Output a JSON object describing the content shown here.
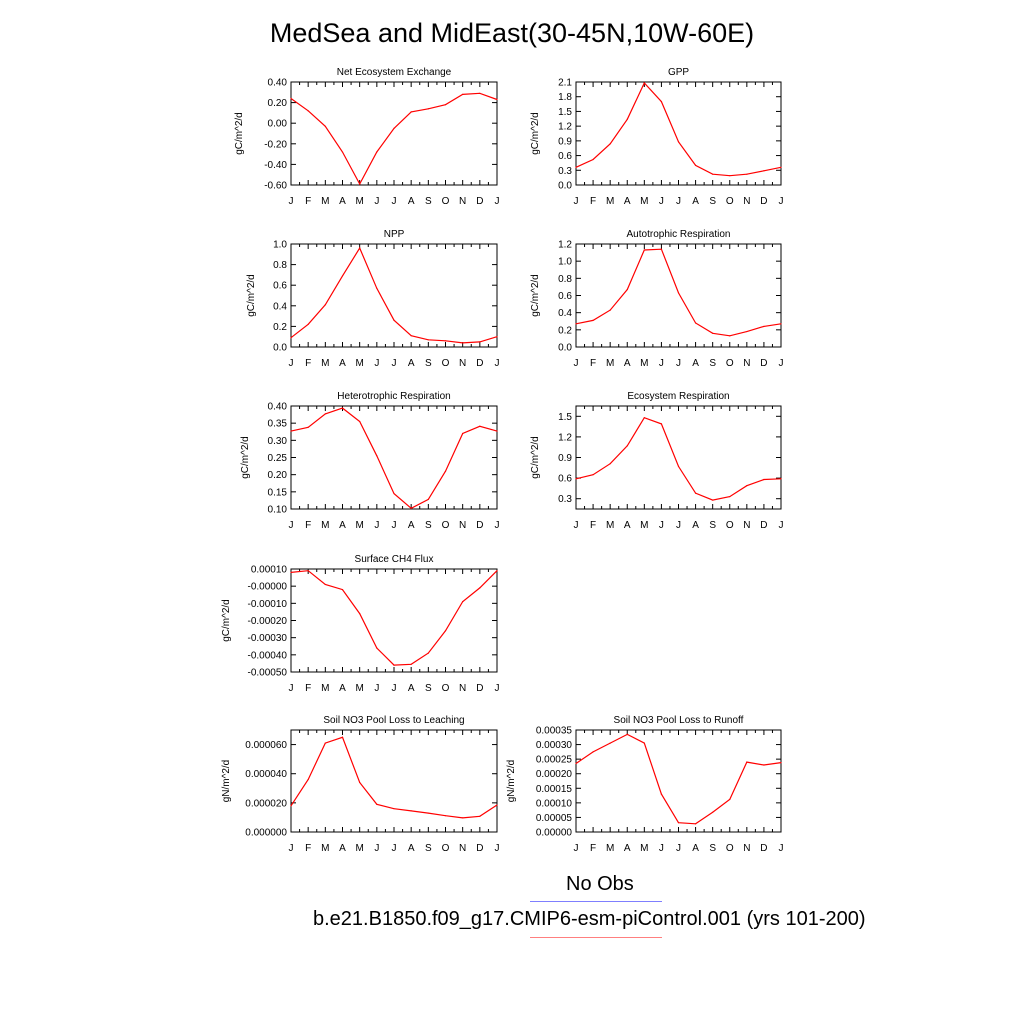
{
  "figure": {
    "title": "MedSea and MidEast(30-45N,10W-60E)",
    "legend": [
      {
        "label": "No Obs",
        "color": "#7f7fff"
      },
      {
        "label": "b.e21.B1850.f09_g17.CMIP6-esm-piControl.001 (yrs 101-200)",
        "color": "#ff7f7f"
      }
    ],
    "line_color": "#ff0000"
  },
  "chart_data": [
    {
      "type": "line",
      "title": "Net Ecosystem Exchange",
      "ylabel": "gC/m^2/d",
      "categories": [
        "J",
        "F",
        "M",
        "A",
        "M",
        "J",
        "J",
        "A",
        "S",
        "O",
        "N",
        "D",
        "J"
      ],
      "ylim": [
        -0.6,
        0.4
      ],
      "yticks": [
        -0.6,
        -0.4,
        -0.2,
        0.0,
        0.2,
        0.4
      ],
      "yticklabels": [
        "-0.60",
        "-0.40",
        "-0.20",
        "0.00",
        "0.20",
        "0.40"
      ],
      "series": [
        {
          "values": [
            0.24,
            0.12,
            -0.03,
            -0.28,
            -0.59,
            -0.28,
            -0.05,
            0.11,
            0.14,
            0.18,
            0.28,
            0.29,
            0.23
          ]
        }
      ]
    },
    {
      "type": "line",
      "title": "GPP",
      "ylabel": "gC/m^2/d",
      "categories": [
        "J",
        "F",
        "M",
        "A",
        "M",
        "J",
        "J",
        "A",
        "S",
        "O",
        "N",
        "D",
        "J"
      ],
      "ylim": [
        0,
        2.1
      ],
      "yticks": [
        0,
        0.3,
        0.6,
        0.9,
        1.2,
        1.5,
        1.8,
        2.1
      ],
      "yticklabels": [
        "0.0",
        "0.3",
        "0.6",
        "0.9",
        "1.2",
        "1.5",
        "1.8",
        "2.1"
      ],
      "series": [
        {
          "values": [
            0.36,
            0.52,
            0.84,
            1.34,
            2.08,
            1.7,
            0.88,
            0.4,
            0.22,
            0.19,
            0.22,
            0.29,
            0.36
          ]
        }
      ]
    },
    {
      "type": "line",
      "title": "NPP",
      "ylabel": "gC/m^2/d",
      "categories": [
        "J",
        "F",
        "M",
        "A",
        "M",
        "J",
        "J",
        "A",
        "S",
        "O",
        "N",
        "D",
        "J"
      ],
      "ylim": [
        0,
        1.0
      ],
      "yticks": [
        0,
        0.2,
        0.4,
        0.6,
        0.8,
        1.0
      ],
      "yticklabels": [
        "0.0",
        "0.2",
        "0.4",
        "0.6",
        "0.8",
        "1.0"
      ],
      "series": [
        {
          "values": [
            0.09,
            0.22,
            0.41,
            0.69,
            0.96,
            0.57,
            0.26,
            0.11,
            0.07,
            0.06,
            0.04,
            0.05,
            0.1
          ]
        }
      ]
    },
    {
      "type": "line",
      "title": "Autotrophic Respiration",
      "ylabel": "gC/m^2/d",
      "categories": [
        "J",
        "F",
        "M",
        "A",
        "M",
        "J",
        "J",
        "A",
        "S",
        "O",
        "N",
        "D",
        "J"
      ],
      "ylim": [
        0,
        1.2
      ],
      "yticks": [
        0,
        0.2,
        0.4,
        0.6,
        0.8,
        1.0,
        1.2
      ],
      "yticklabels": [
        "0.0",
        "0.2",
        "0.4",
        "0.6",
        "0.8",
        "1.0",
        "1.2"
      ],
      "series": [
        {
          "values": [
            0.27,
            0.31,
            0.43,
            0.67,
            1.13,
            1.14,
            0.63,
            0.28,
            0.16,
            0.13,
            0.18,
            0.24,
            0.27
          ]
        }
      ]
    },
    {
      "type": "line",
      "title": "Heterotrophic Respiration",
      "ylabel": "gC/m^2/d",
      "categories": [
        "J",
        "F",
        "M",
        "A",
        "M",
        "J",
        "J",
        "A",
        "S",
        "O",
        "N",
        "D",
        "J"
      ],
      "ylim": [
        0.1,
        0.4
      ],
      "yticks": [
        0.1,
        0.15,
        0.2,
        0.25,
        0.3,
        0.35,
        0.4
      ],
      "yticklabels": [
        "0.10",
        "0.15",
        "0.20",
        "0.25",
        "0.30",
        "0.35",
        "0.40"
      ],
      "series": [
        {
          "values": [
            0.327,
            0.338,
            0.377,
            0.394,
            0.355,
            0.255,
            0.145,
            0.102,
            0.128,
            0.21,
            0.32,
            0.341,
            0.327
          ]
        }
      ]
    },
    {
      "type": "line",
      "title": "Ecosystem Respiration",
      "ylabel": "gC/m^2/d",
      "categories": [
        "J",
        "F",
        "M",
        "A",
        "M",
        "J",
        "J",
        "A",
        "S",
        "O",
        "N",
        "D",
        "J"
      ],
      "ylim": [
        0.15,
        1.65
      ],
      "yticks": [
        0.3,
        0.6,
        0.9,
        1.2,
        1.5
      ],
      "yticklabels": [
        "0.3",
        "0.6",
        "0.9",
        "1.2",
        "1.5"
      ],
      "series": [
        {
          "values": [
            0.59,
            0.65,
            0.81,
            1.07,
            1.48,
            1.39,
            0.77,
            0.38,
            0.28,
            0.33,
            0.49,
            0.58,
            0.59
          ]
        }
      ]
    },
    {
      "type": "line",
      "title": "Surface CH4 Flux",
      "ylabel": "gC/m^2/d",
      "categories": [
        "J",
        "F",
        "M",
        "A",
        "M",
        "J",
        "J",
        "A",
        "S",
        "O",
        "N",
        "D",
        "J"
      ],
      "ylim": [
        -0.0005,
        0.0001
      ],
      "yticks": [
        0.0001,
        0.0,
        -0.0001,
        -0.0002,
        -0.0003,
        -0.0004,
        -0.0005
      ],
      "yticklabels": [
        "0.00010",
        "-0.00000",
        "-0.00010",
        "-0.00020",
        "-0.00030",
        "-0.00040",
        "-0.00050"
      ],
      "series": [
        {
          "values": [
            8e-05,
            9e-05,
            1e-05,
            -2e-05,
            -0.00016,
            -0.00036,
            -0.00046,
            -0.000455,
            -0.00039,
            -0.00026,
            -9e-05,
            -1e-05,
            9e-05
          ]
        }
      ]
    },
    {
      "type": "line",
      "title": "Soil NO3 Pool Loss to Leaching",
      "ylabel": "gN/m^2/d",
      "categories": [
        "J",
        "F",
        "M",
        "A",
        "M",
        "J",
        "J",
        "A",
        "S",
        "O",
        "N",
        "D",
        "J"
      ],
      "ylim": [
        0,
        7e-05
      ],
      "yticks": [
        0,
        2e-05,
        4e-05,
        6e-05
      ],
      "yticklabels": [
        "0.000000",
        "0.000020",
        "0.000040",
        "0.000060"
      ],
      "series": [
        {
          "values": [
            1.8e-05,
            3.6e-05,
            6.1e-05,
            6.5e-05,
            3.4e-05,
            1.9e-05,
            1.6e-05,
            1.45e-05,
            1.3e-05,
            1.12e-05,
            9.7e-06,
            1.08e-05,
            1.85e-05
          ]
        }
      ]
    },
    {
      "type": "line",
      "title": "Soil NO3 Pool Loss to Runoff",
      "ylabel": "gN/m^2/d",
      "categories": [
        "J",
        "F",
        "M",
        "A",
        "M",
        "J",
        "J",
        "A",
        "S",
        "O",
        "N",
        "D",
        "J"
      ],
      "ylim": [
        0,
        0.00035
      ],
      "yticks": [
        0,
        5e-05,
        0.0001,
        0.00015,
        0.0002,
        0.00025,
        0.0003,
        0.00035
      ],
      "yticklabels": [
        "0.00000",
        "0.00005",
        "0.00010",
        "0.00015",
        "0.00020",
        "0.00025",
        "0.00030",
        "0.00035"
      ],
      "series": [
        {
          "values": [
            0.000235,
            0.000275,
            0.000305,
            0.000335,
            0.000305,
            0.00013,
            3.2e-05,
            2.8e-05,
            6.8e-05,
            0.000112,
            0.00024,
            0.00023,
            0.000238
          ]
        }
      ]
    }
  ]
}
